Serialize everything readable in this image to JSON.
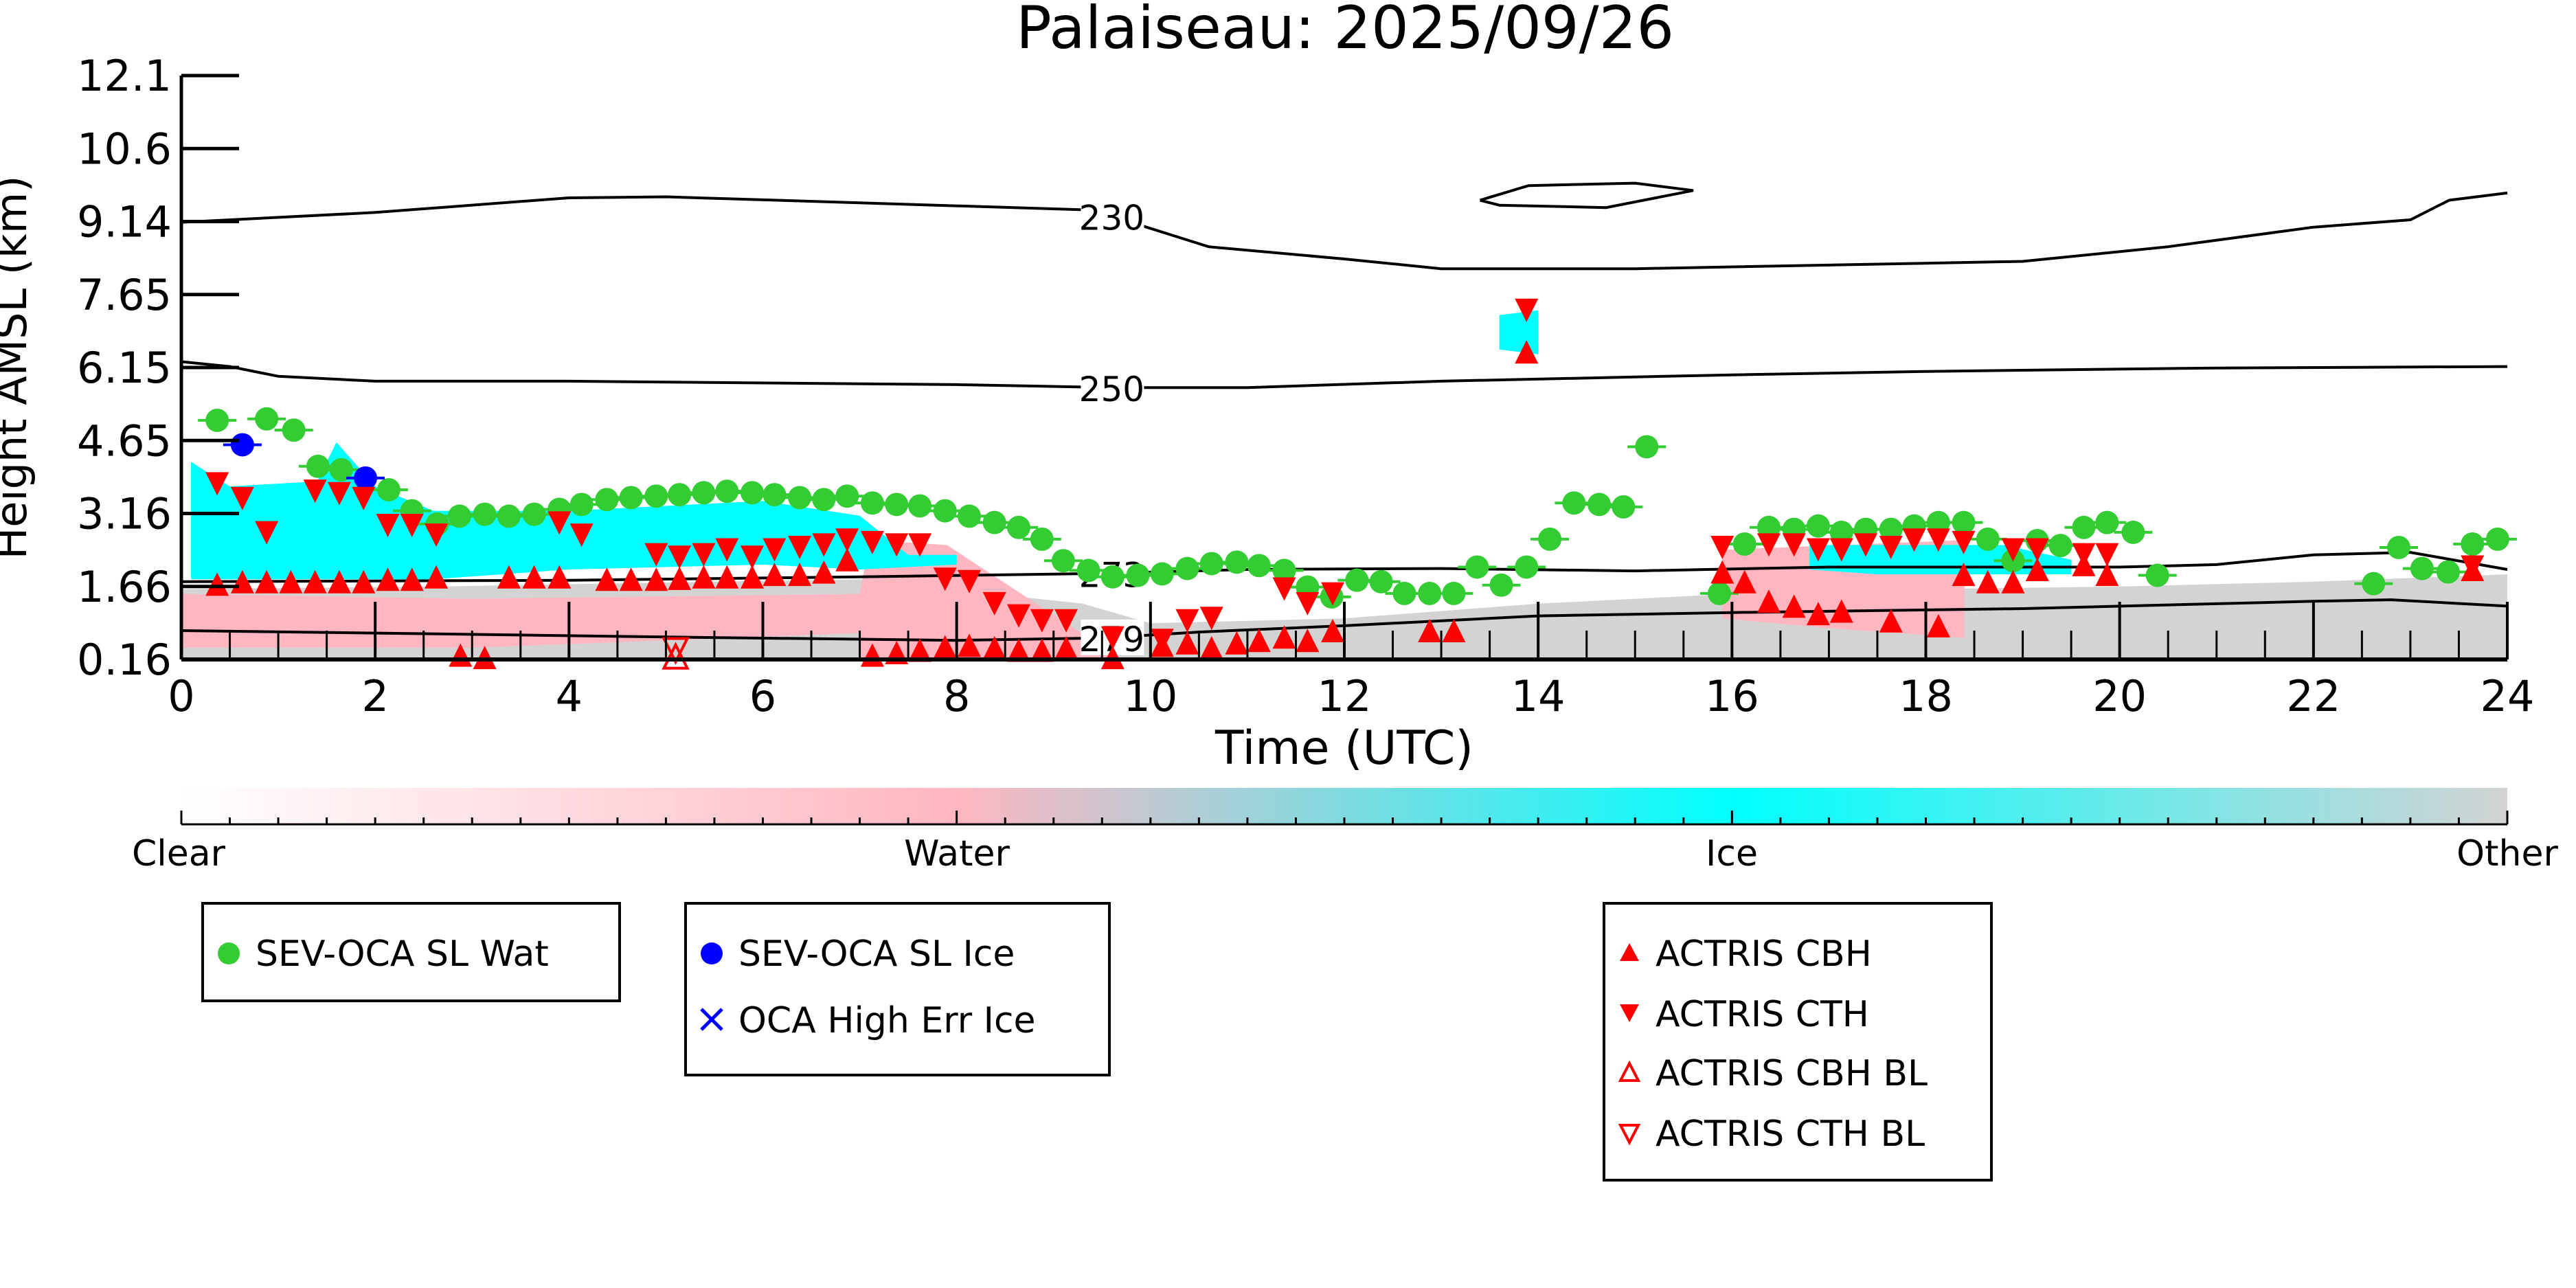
{
  "chart_data": {
    "type": "scatter",
    "title": "Palaiseau: 2025/09/26",
    "xlabel": "Time (UTC)",
    "ylabel": "Height AMSL (km)",
    "xlim": [
      0,
      24
    ],
    "ylim": [
      0.16,
      12.1
    ],
    "xticks": [
      "0",
      "2",
      "4",
      "6",
      "8",
      "10",
      "12",
      "14",
      "16",
      "18",
      "20",
      "22",
      "24"
    ],
    "yticks": [
      "12.1",
      "10.6",
      "9.14",
      "7.65",
      "6.15",
      "4.65",
      "3.16",
      "1.66",
      "0.16"
    ],
    "colorbar": {
      "labels": [
        "Clear",
        "Water",
        "Ice",
        "Other"
      ],
      "colors": [
        "#ffffff",
        "#ffb6c1",
        "#00ffff",
        "#d3d3d3"
      ]
    },
    "contours": [
      {
        "label": "230",
        "label_at": 9.6,
        "points": [
          [
            0,
            9.1
          ],
          [
            2,
            9.3
          ],
          [
            4,
            9.6
          ],
          [
            5,
            9.62
          ],
          [
            9.4,
            9.35
          ],
          [
            10.2,
            8.85
          ],
          [
            10.6,
            8.6
          ],
          [
            12,
            8.35
          ],
          [
            13,
            8.15
          ],
          [
            15,
            8.15
          ],
          [
            19,
            8.3
          ],
          [
            20.5,
            8.6
          ],
          [
            22,
            9.0
          ],
          [
            23,
            9.15
          ],
          [
            23.4,
            9.55
          ],
          [
            24,
            9.7
          ]
        ]
      },
      {
        "label": "",
        "label_at": null,
        "points": [
          [
            13.4,
            9.55
          ],
          [
            13.9,
            9.85
          ],
          [
            15,
            9.9
          ],
          [
            15.6,
            9.75
          ],
          [
            14.7,
            9.4
          ],
          [
            13.6,
            9.45
          ],
          [
            13.4,
            9.55
          ]
        ]
      },
      {
        "label": "250",
        "label_at": 9.6,
        "points": [
          [
            0,
            6.25
          ],
          [
            0.5,
            6.15
          ],
          [
            1,
            5.95
          ],
          [
            2,
            5.85
          ],
          [
            4,
            5.85
          ],
          [
            8,
            5.78
          ],
          [
            9.6,
            5.72
          ],
          [
            11,
            5.72
          ],
          [
            13,
            5.85
          ],
          [
            16,
            5.98
          ],
          [
            18,
            6.05
          ],
          [
            21,
            6.12
          ],
          [
            24,
            6.15
          ]
        ]
      },
      {
        "label": "273",
        "label_at": 9.6,
        "points": [
          [
            0,
            1.75
          ],
          [
            4,
            1.78
          ],
          [
            7,
            1.85
          ],
          [
            9.5,
            1.92
          ],
          [
            11,
            2.0
          ],
          [
            13,
            2.02
          ],
          [
            15,
            1.97
          ],
          [
            17,
            2.05
          ],
          [
            20,
            2.05
          ],
          [
            21,
            2.1
          ],
          [
            22,
            2.3
          ],
          [
            23,
            2.35
          ],
          [
            24,
            2.0
          ]
        ]
      },
      {
        "label": "279",
        "label_at": 9.6,
        "points": [
          [
            0,
            0.75
          ],
          [
            2,
            0.7
          ],
          [
            5,
            0.62
          ],
          [
            8,
            0.55
          ],
          [
            9.5,
            0.6
          ],
          [
            10.5,
            0.72
          ],
          [
            12,
            0.85
          ],
          [
            14,
            1.05
          ],
          [
            16,
            1.12
          ],
          [
            19,
            1.2
          ],
          [
            22,
            1.35
          ],
          [
            22.8,
            1.38
          ],
          [
            24,
            1.25
          ]
        ]
      }
    ],
    "series": [
      {
        "name": "SEV-OCA SL Wat",
        "color": "#33cc33",
        "marker": "circle",
        "points": [
          [
            0.37,
            5.05
          ],
          [
            0.88,
            5.08
          ],
          [
            1.16,
            4.85
          ],
          [
            1.41,
            4.11
          ],
          [
            1.65,
            4.04
          ],
          [
            2.14,
            3.63
          ],
          [
            2.38,
            3.2
          ],
          [
            2.64,
            2.93
          ],
          [
            2.87,
            3.09
          ],
          [
            3.13,
            3.13
          ],
          [
            3.38,
            3.09
          ],
          [
            3.64,
            3.13
          ],
          [
            3.9,
            3.23
          ],
          [
            4.13,
            3.33
          ],
          [
            4.39,
            3.43
          ],
          [
            4.64,
            3.47
          ],
          [
            4.9,
            3.5
          ],
          [
            5.14,
            3.53
          ],
          [
            5.39,
            3.57
          ],
          [
            5.63,
            3.6
          ],
          [
            5.89,
            3.57
          ],
          [
            6.12,
            3.53
          ],
          [
            6.38,
            3.47
          ],
          [
            6.63,
            3.43
          ],
          [
            6.87,
            3.5
          ],
          [
            7.13,
            3.36
          ],
          [
            7.38,
            3.33
          ],
          [
            7.62,
            3.3
          ],
          [
            7.88,
            3.2
          ],
          [
            8.13,
            3.09
          ],
          [
            8.39,
            2.96
          ],
          [
            8.64,
            2.86
          ],
          [
            8.88,
            2.62
          ],
          [
            9.1,
            2.18
          ],
          [
            9.36,
            1.98
          ],
          [
            9.61,
            1.85
          ],
          [
            9.87,
            1.88
          ],
          [
            10.12,
            1.91
          ],
          [
            10.38,
            2.02
          ],
          [
            10.63,
            2.12
          ],
          [
            10.89,
            2.15
          ],
          [
            11.12,
            2.08
          ],
          [
            11.38,
            1.98
          ],
          [
            11.62,
            1.64
          ],
          [
            11.87,
            1.44
          ],
          [
            12.13,
            1.78
          ],
          [
            12.38,
            1.75
          ],
          [
            12.62,
            1.51
          ],
          [
            12.88,
            1.51
          ],
          [
            13.13,
            1.51
          ],
          [
            13.37,
            2.05
          ],
          [
            13.62,
            1.68
          ],
          [
            13.88,
            2.05
          ],
          [
            14.12,
            2.62
          ],
          [
            14.37,
            3.36
          ],
          [
            14.63,
            3.33
          ],
          [
            14.88,
            3.28
          ],
          [
            15.12,
            4.51
          ],
          [
            15.87,
            1.51
          ],
          [
            16.13,
            2.52
          ],
          [
            16.38,
            2.86
          ],
          [
            16.64,
            2.82
          ],
          [
            16.89,
            2.89
          ],
          [
            17.13,
            2.76
          ],
          [
            17.38,
            2.82
          ],
          [
            17.64,
            2.82
          ],
          [
            17.88,
            2.89
          ],
          [
            18.13,
            2.96
          ],
          [
            18.39,
            2.96
          ],
          [
            18.64,
            2.62
          ],
          [
            18.9,
            2.18
          ],
          [
            19.15,
            2.59
          ],
          [
            19.39,
            2.49
          ],
          [
            19.63,
            2.86
          ],
          [
            19.87,
            2.96
          ],
          [
            20.14,
            2.76
          ],
          [
            20.39,
            1.88
          ],
          [
            22.62,
            1.71
          ],
          [
            22.88,
            2.45
          ],
          [
            23.12,
            2.02
          ],
          [
            23.39,
            1.95
          ],
          [
            23.64,
            2.52
          ],
          [
            23.9,
            2.62
          ]
        ]
      },
      {
        "name": "SEV-OCA SL Ice",
        "color": "#0000ff",
        "marker": "circle",
        "points": [
          [
            0.63,
            4.55
          ],
          [
            1.9,
            3.87
          ]
        ]
      },
      {
        "name": "OCA High Err Ice",
        "color": "#0000ff",
        "marker": "x",
        "points": []
      },
      {
        "name": "ACTRIS CBH",
        "color": "#ff0000",
        "marker": "triangle-up",
        "points": [
          [
            0.37,
            1.7
          ],
          [
            0.63,
            1.75
          ],
          [
            0.88,
            1.75
          ],
          [
            1.13,
            1.75
          ],
          [
            1.38,
            1.75
          ],
          [
            1.63,
            1.75
          ],
          [
            1.88,
            1.75
          ],
          [
            2.13,
            1.8
          ],
          [
            2.38,
            1.8
          ],
          [
            2.63,
            1.85
          ],
          [
            2.88,
            0.25
          ],
          [
            3.13,
            0.2
          ],
          [
            3.38,
            1.85
          ],
          [
            3.64,
            1.85
          ],
          [
            3.9,
            1.85
          ],
          [
            4.39,
            1.8
          ],
          [
            4.64,
            1.8
          ],
          [
            4.9,
            1.8
          ],
          [
            5.14,
            1.82
          ],
          [
            5.39,
            1.85
          ],
          [
            5.63,
            1.85
          ],
          [
            5.89,
            1.85
          ],
          [
            6.12,
            1.9
          ],
          [
            6.38,
            1.9
          ],
          [
            6.63,
            1.95
          ],
          [
            6.87,
            2.2
          ],
          [
            7.13,
            0.25
          ],
          [
            7.38,
            0.3
          ],
          [
            7.62,
            0.35
          ],
          [
            7.88,
            0.42
          ],
          [
            8.13,
            0.45
          ],
          [
            8.39,
            0.4
          ],
          [
            8.64,
            0.35
          ],
          [
            8.88,
            0.35
          ],
          [
            9.13,
            0.4
          ],
          [
            9.61,
            0.2
          ],
          [
            10.12,
            0.45
          ],
          [
            10.38,
            0.5
          ],
          [
            10.63,
            0.4
          ],
          [
            10.89,
            0.5
          ],
          [
            11.12,
            0.55
          ],
          [
            11.38,
            0.62
          ],
          [
            11.62,
            0.55
          ],
          [
            11.88,
            0.75
          ],
          [
            12.88,
            0.75
          ],
          [
            13.13,
            0.75
          ],
          [
            13.88,
            6.45
          ],
          [
            15.9,
            1.95
          ],
          [
            16.13,
            1.75
          ],
          [
            16.38,
            1.35
          ],
          [
            16.64,
            1.25
          ],
          [
            16.89,
            1.1
          ],
          [
            17.13,
            1.15
          ],
          [
            17.64,
            0.95
          ],
          [
            18.13,
            0.85
          ],
          [
            18.39,
            1.9
          ],
          [
            18.64,
            1.75
          ],
          [
            18.9,
            1.75
          ],
          [
            19.15,
            2.0
          ],
          [
            19.63,
            2.1
          ],
          [
            19.87,
            1.9
          ],
          [
            23.64,
            2.0
          ]
        ]
      },
      {
        "name": "ACTRIS CTH",
        "color": "#ff0000",
        "marker": "triangle-down",
        "points": [
          [
            0.37,
            3.75
          ],
          [
            0.63,
            3.45
          ],
          [
            0.88,
            2.75
          ],
          [
            1.38,
            3.6
          ],
          [
            1.63,
            3.55
          ],
          [
            1.88,
            3.45
          ],
          [
            2.13,
            2.9
          ],
          [
            2.38,
            2.9
          ],
          [
            2.63,
            2.7
          ],
          [
            3.9,
            2.95
          ],
          [
            4.13,
            2.7
          ],
          [
            4.9,
            2.3
          ],
          [
            5.14,
            2.25
          ],
          [
            5.39,
            2.3
          ],
          [
            5.63,
            2.4
          ],
          [
            5.89,
            2.25
          ],
          [
            6.12,
            2.4
          ],
          [
            6.38,
            2.45
          ],
          [
            6.63,
            2.5
          ],
          [
            6.87,
            2.6
          ],
          [
            7.13,
            2.55
          ],
          [
            7.38,
            2.5
          ],
          [
            7.62,
            2.5
          ],
          [
            7.88,
            1.8
          ],
          [
            8.13,
            1.75
          ],
          [
            8.39,
            1.3
          ],
          [
            8.64,
            1.05
          ],
          [
            8.88,
            0.95
          ],
          [
            9.13,
            0.95
          ],
          [
            9.61,
            0.6
          ],
          [
            10.12,
            0.55
          ],
          [
            10.38,
            0.95
          ],
          [
            10.63,
            1.0
          ],
          [
            11.38,
            1.6
          ],
          [
            11.62,
            1.3
          ],
          [
            11.88,
            1.5
          ],
          [
            13.88,
            7.3
          ],
          [
            15.9,
            2.45
          ],
          [
            16.38,
            2.5
          ],
          [
            16.64,
            2.5
          ],
          [
            16.89,
            2.4
          ],
          [
            17.13,
            2.4
          ],
          [
            17.38,
            2.5
          ],
          [
            17.64,
            2.45
          ],
          [
            17.88,
            2.6
          ],
          [
            18.13,
            2.6
          ],
          [
            18.39,
            2.55
          ],
          [
            18.9,
            2.4
          ],
          [
            19.15,
            2.4
          ],
          [
            19.63,
            2.3
          ],
          [
            19.87,
            2.3
          ],
          [
            23.64,
            2.05
          ]
        ]
      },
      {
        "name": "ACTRIS CBH BL",
        "color": "#ff0000",
        "marker": "triangle-up-open",
        "points": [
          [
            5.1,
            0.22
          ]
        ]
      },
      {
        "name": "ACTRIS CTH BL",
        "color": "#ff0000",
        "marker": "triangle-down-open",
        "points": [
          [
            5.1,
            0.35
          ]
        ]
      }
    ],
    "legend": {
      "box1": [
        "SEV-OCA SL Wat"
      ],
      "box2": [
        "SEV-OCA SL Ice",
        "OCA High Err Ice"
      ],
      "box3": [
        "ACTRIS CBH",
        "ACTRIS CTH",
        "ACTRIS CBH BL",
        "ACTRIS CTH BL"
      ]
    }
  }
}
